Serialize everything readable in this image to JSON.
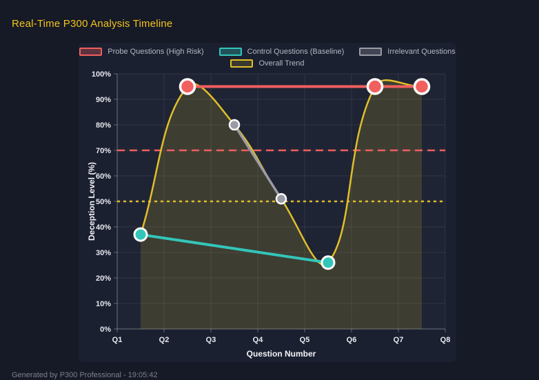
{
  "page": {
    "title": "Real-Time P300 Analysis Timeline",
    "footer": "Generated by P300 Professional - 19:05:42"
  },
  "colors": {
    "background": "#161926",
    "panel": "#1b2030",
    "plot_area_tint": "rgba(255,255,255,0.018)",
    "title": "#f2c41d",
    "grid": "rgba(255,255,255,0.08)",
    "axis": "rgba(255,255,255,0.3)",
    "tick_text": "#e7e9f0",
    "axis_title_text": "#f2f3f7",
    "point_border": "#ffffff",
    "legend_text": "#b4b7c1",
    "footer_text": "#7c8090"
  },
  "chart_data": {
    "type": "line",
    "title": "Real-Time P300 Analysis Timeline",
    "xlabel": "Question Number",
    "ylabel": "Deception Level (%)",
    "x_range": [
      1,
      8
    ],
    "ylim": [
      0,
      100
    ],
    "y_step": 10,
    "x_ticks": [
      "Q1",
      "Q2",
      "Q3",
      "Q4",
      "Q5",
      "Q6",
      "Q7",
      "Q8"
    ],
    "y_ticks": [
      "0%",
      "10%",
      "20%",
      "30%",
      "40%",
      "50%",
      "60%",
      "70%",
      "80%",
      "90%",
      "100%"
    ],
    "grid": true,
    "legend_position": "top",
    "legend_rows": [
      [
        0,
        1,
        2
      ],
      [
        3
      ]
    ],
    "series": [
      {
        "name": "Probe Questions (High Risk)",
        "color": "#f15f5f",
        "fill": "rgba(241,95,95,0.3)",
        "points": [
          [
            2.5,
            95
          ],
          [
            6.5,
            95
          ],
          [
            7.5,
            95
          ]
        ],
        "line_width": 4,
        "point_radius": 10.5,
        "smooth": false,
        "area": false
      },
      {
        "name": "Control Questions (Baseline)",
        "color": "#32c6b9",
        "fill": "rgba(50,198,185,0.3)",
        "points": [
          [
            1.5,
            37
          ],
          [
            5.5,
            26
          ]
        ],
        "line_width": 4,
        "point_radius": 9,
        "smooth": false,
        "area": false
      },
      {
        "name": "Irrelevant Questions",
        "color": "#9b9ba6",
        "fill": "rgba(155,155,166,0.3)",
        "points": [
          [
            3.5,
            80
          ],
          [
            4.5,
            51
          ]
        ],
        "line_width": 3.5,
        "point_radius": 7,
        "smooth": false,
        "area": false
      },
      {
        "name": "Overall Trend",
        "color": "#e2bf2a",
        "fill": "rgba(226,191,42,0.16)",
        "points": [
          [
            1.5,
            37
          ],
          [
            2.5,
            95
          ],
          [
            3.5,
            80
          ],
          [
            4.5,
            51
          ],
          [
            5.5,
            26
          ],
          [
            6.5,
            95
          ],
          [
            7.5,
            95
          ]
        ],
        "line_width": 2.5,
        "point_radius": 0,
        "smooth": true,
        "area": true
      }
    ],
    "thresholds": [
      {
        "value": 70,
        "color": "#f15f5f",
        "dash": [
          11,
          7
        ],
        "width": 2.5
      },
      {
        "value": 50,
        "color": "#e2bf2a",
        "dash": [
          4,
          5
        ],
        "width": 2.5
      }
    ]
  }
}
